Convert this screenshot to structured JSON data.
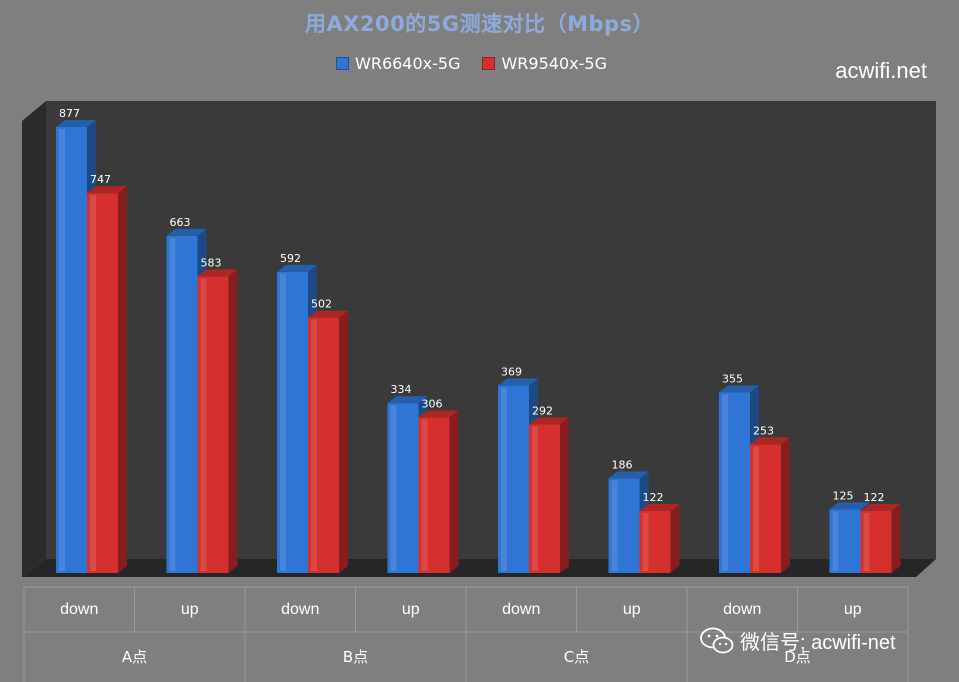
{
  "watermark_top": "acwifi.net",
  "watermark_bottom": "微信号: acwifi-net",
  "colors": {
    "background": "#7f7f7f",
    "plot_back": "#3a3a3a",
    "series_blue": "#2e75d6",
    "series_red": "#d6302e",
    "title": "#8eaadb"
  },
  "icons": {
    "watermark_icon": "wechat-icon"
  },
  "chart_data": {
    "type": "bar",
    "title": "用AX200的5G测速对比（Mbps）",
    "legend_position": "top",
    "grid": false,
    "ylim": [
      0,
      900
    ],
    "categories": [
      "down",
      "up",
      "down",
      "up",
      "down",
      "up",
      "down",
      "up"
    ],
    "groups": [
      "A点",
      "B点",
      "C点",
      "D点"
    ],
    "series": [
      {
        "name": "WR6640x-5G",
        "values": [
          877,
          663,
          592,
          334,
          369,
          186,
          355,
          125
        ]
      },
      {
        "name": "WR9540x-5G",
        "values": [
          747,
          583,
          502,
          306,
          292,
          122,
          253,
          122
        ]
      }
    ]
  }
}
